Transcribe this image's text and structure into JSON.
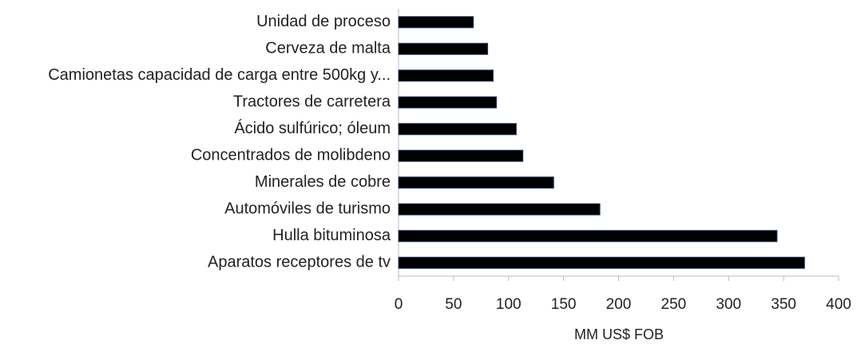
{
  "chart_data": {
    "type": "bar",
    "orientation": "horizontal",
    "categories": [
      "Unidad de proceso",
      "Cerveza de malta",
      "Camionetas capacidad de carga entre 500kg y...",
      "Tractores de carretera",
      "Ácido sulfúrico; óleum",
      "Concentrados de molibdeno",
      "Minerales de cobre",
      "Automóviles de turismo",
      "Hulla bituminosa",
      "Aparatos receptores de tv"
    ],
    "values": [
      68,
      81,
      86,
      89,
      107,
      113,
      141,
      183,
      344,
      369
    ],
    "color": "#000000",
    "xlabel": "MM US$ FOB",
    "xlim": [
      0,
      400
    ],
    "xticks": [
      0,
      50,
      100,
      150,
      200,
      250,
      300,
      350,
      400
    ]
  }
}
